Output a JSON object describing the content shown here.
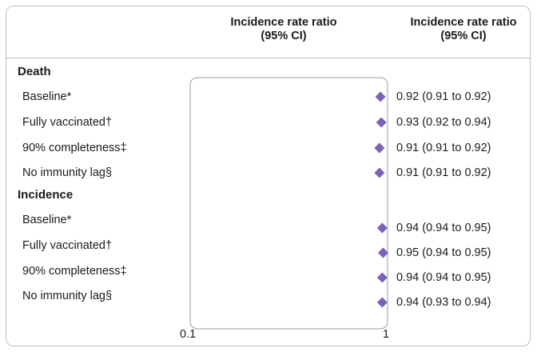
{
  "headers": {
    "plot_column": "Incidence rate ratio (95% CI)",
    "value_column": "Incidence rate ratio (95% CI)"
  },
  "colors": {
    "marker": "#7b61b8",
    "frame": "#bdbdbd"
  },
  "chart_data": {
    "type": "forest",
    "x_scale": "log",
    "xlim": [
      0.1,
      1
    ],
    "x_ticks": [
      "0.1",
      "1"
    ],
    "marker_color": "#7b61b8",
    "groups": [
      {
        "title": "Death",
        "rows": [
          {
            "label": "Baseline*",
            "estimate": 0.92,
            "low": 0.91,
            "high": 0.92,
            "text": "0.92 (0.91 to 0.92)"
          },
          {
            "label": "Fully vaccinated†",
            "estimate": 0.93,
            "low": 0.92,
            "high": 0.94,
            "text": "0.93 (0.92 to 0.94)"
          },
          {
            "label": "90% completeness‡",
            "estimate": 0.91,
            "low": 0.91,
            "high": 0.92,
            "text": "0.91 (0.91 to 0.92)"
          },
          {
            "label": "No immunity lag§",
            "estimate": 0.91,
            "low": 0.91,
            "high": 0.92,
            "text": "0.91 (0.91 to 0.92)"
          }
        ]
      },
      {
        "title": "Incidence",
        "rows": [
          {
            "label": "Baseline*",
            "estimate": 0.94,
            "low": 0.94,
            "high": 0.95,
            "text": "0.94 (0.94 to 0.95)"
          },
          {
            "label": "Fully vaccinated†",
            "estimate": 0.95,
            "low": 0.94,
            "high": 0.95,
            "text": "0.95 (0.94 to 0.95)"
          },
          {
            "label": "90% completeness‡",
            "estimate": 0.94,
            "low": 0.94,
            "high": 0.95,
            "text": "0.94 (0.94 to 0.95)"
          },
          {
            "label": "No immunity lag§",
            "estimate": 0.94,
            "low": 0.93,
            "high": 0.94,
            "text": "0.94 (0.93 to 0.94)"
          }
        ]
      }
    ]
  }
}
